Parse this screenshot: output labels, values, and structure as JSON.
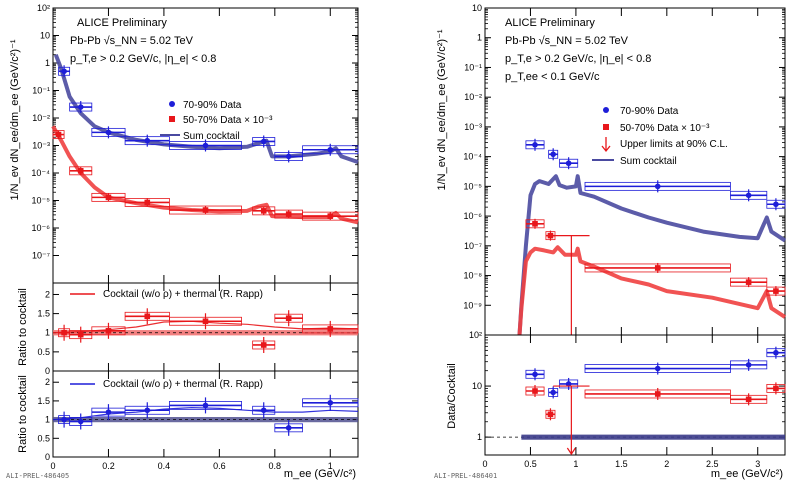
{
  "chart_data": [
    {
      "type": "scatter",
      "panel": "left-top",
      "log_y": true,
      "xlim": [
        0,
        1.1
      ],
      "ylim_exp": [
        -8,
        2
      ],
      "y_ticks": [
        "10⁻⁷",
        "10⁻⁶",
        "10⁻⁵",
        "10⁻⁴",
        "10⁻³",
        "10⁻²",
        "10⁻¹",
        "1",
        "10",
        "10²"
      ],
      "ylabel": "1/N_ev dN_ee/dm_ee (GeV/c²)⁻¹",
      "header": [
        "ALICE Preliminary",
        "Pb-Pb √s_NN = 5.02 TeV",
        "p_T,e > 0.2 GeV/c, |η_e| < 0.8"
      ],
      "legend": [
        "70-90% Data",
        "50-70% Data × 10⁻³",
        "Sum cocktail"
      ],
      "series": [
        {
          "name": "70-90% Data",
          "color": "#1e1ed8",
          "points": [
            {
              "x": 0.04,
              "xw": 0.02,
              "y": 0.5
            },
            {
              "x": 0.1,
              "xw": 0.04,
              "y": 0.025
            },
            {
              "x": 0.2,
              "xw": 0.06,
              "y": 0.003
            },
            {
              "x": 0.34,
              "xw": 0.08,
              "y": 0.0015
            },
            {
              "x": 0.55,
              "xw": 0.13,
              "y": 0.001
            },
            {
              "x": 0.76,
              "xw": 0.04,
              "y": 0.0014
            },
            {
              "x": 0.85,
              "xw": 0.05,
              "y": 0.0004
            },
            {
              "x": 1.0,
              "xw": 0.1,
              "y": 0.0007
            }
          ]
        },
        {
          "name": "50-70% Data × 10⁻³",
          "color": "#e8171b",
          "points": [
            {
              "x": 0.02,
              "xw": 0.02,
              "y": 0.0025
            },
            {
              "x": 0.1,
              "xw": 0.04,
              "y": 0.00012
            },
            {
              "x": 0.2,
              "xw": 0.06,
              "y": 1.3e-05
            },
            {
              "x": 0.34,
              "xw": 0.08,
              "y": 8.5e-06
            },
            {
              "x": 0.55,
              "xw": 0.13,
              "y": 4.5e-06
            },
            {
              "x": 0.76,
              "xw": 0.04,
              "y": 4.2e-06
            },
            {
              "x": 0.85,
              "xw": 0.05,
              "y": 3.2e-06
            },
            {
              "x": 1.0,
              "xw": 0.1,
              "y": 2.7e-06
            }
          ]
        }
      ],
      "cocktail": [
        {
          "color": "#4a4aa0",
          "band": [
            [
              0.01,
              2
            ],
            [
              0.03,
              0.6
            ],
            [
              0.06,
              0.06
            ],
            [
              0.1,
              0.015
            ],
            [
              0.15,
              0.005
            ],
            [
              0.2,
              0.003
            ],
            [
              0.3,
              0.0016
            ],
            [
              0.4,
              0.0011
            ],
            [
              0.5,
              0.0009
            ],
            [
              0.6,
              0.0008
            ],
            [
              0.7,
              0.0009
            ],
            [
              0.74,
              0.0012
            ],
            [
              0.77,
              0.0015
            ],
            [
              0.79,
              0.0004
            ],
            [
              0.85,
              0.0004
            ],
            [
              0.95,
              0.0005
            ],
            [
              1.0,
              0.0006
            ],
            [
              1.02,
              0.0008
            ],
            [
              1.04,
              0.0004
            ],
            [
              1.1,
              0.00025
            ]
          ]
        },
        {
          "color": "#f04040",
          "band": [
            [
              0.0,
              0.005
            ],
            [
              0.03,
              0.0015
            ],
            [
              0.06,
              0.0004
            ],
            [
              0.1,
              0.0001
            ],
            [
              0.15,
              3e-05
            ],
            [
              0.2,
              1.3e-05
            ],
            [
              0.3,
              8e-06
            ],
            [
              0.4,
              5.5e-06
            ],
            [
              0.5,
              4.5e-06
            ],
            [
              0.6,
              4e-06
            ],
            [
              0.7,
              4.2e-06
            ],
            [
              0.74,
              6e-06
            ],
            [
              0.77,
              7e-06
            ],
            [
              0.79,
              2.7e-06
            ],
            [
              0.9,
              2.5e-06
            ],
            [
              1.0,
              2.5e-06
            ],
            [
              1.02,
              3.5e-06
            ],
            [
              1.04,
              2.2e-06
            ],
            [
              1.1,
              1.6e-06
            ]
          ]
        }
      ]
    },
    {
      "type": "scatter",
      "panel": "left-ratio-50-70",
      "xlim": [
        0,
        1.1
      ],
      "ylim": [
        0,
        2.3
      ],
      "y_ticks": [
        "0",
        "0.5",
        "1",
        "1.5",
        "2"
      ],
      "ylabel": "Ratio to cocktail",
      "legend": [
        "Cocktail (w/o ρ) + thermal (R. Rapp)"
      ],
      "color": "#e8171b",
      "points": [
        {
          "x": 0.04,
          "xw": 0.02,
          "y": 1.0
        },
        {
          "x": 0.1,
          "xw": 0.04,
          "y": 0.95
        },
        {
          "x": 0.2,
          "xw": 0.06,
          "y": 1.05
        },
        {
          "x": 0.34,
          "xw": 0.08,
          "y": 1.43
        },
        {
          "x": 0.55,
          "xw": 0.13,
          "y": 1.3
        },
        {
          "x": 0.76,
          "xw": 0.04,
          "y": 0.68
        },
        {
          "x": 0.85,
          "xw": 0.05,
          "y": 1.38
        },
        {
          "x": 1.0,
          "xw": 0.1,
          "y": 1.1
        }
      ],
      "model": [
        [
          0,
          1.0
        ],
        [
          0.1,
          1.03
        ],
        [
          0.2,
          1.08
        ],
        [
          0.3,
          1.15
        ],
        [
          0.4,
          1.28
        ],
        [
          0.5,
          1.3
        ],
        [
          0.6,
          1.25
        ],
        [
          0.7,
          1.22
        ],
        [
          0.8,
          1.15
        ],
        [
          0.9,
          1.1
        ],
        [
          1.0,
          1.12
        ],
        [
          1.1,
          1.1
        ]
      ]
    },
    {
      "type": "scatter",
      "panel": "left-ratio-70-90",
      "xlim": [
        0,
        1.1
      ],
      "ylim": [
        0,
        2.3
      ],
      "y_ticks": [
        "0",
        "0.5",
        "1",
        "1.5",
        "2"
      ],
      "x_ticks": [
        "0",
        "0.2",
        "0.4",
        "0.6",
        "0.8",
        "1"
      ],
      "xlabel": "m_ee (GeV/c²)",
      "ylabel": "Ratio to cocktail",
      "legend": [
        "Cocktail (w/o ρ) + thermal (R. Rapp)"
      ],
      "color": "#1e1ed8",
      "points": [
        {
          "x": 0.04,
          "xw": 0.02,
          "y": 1.0
        },
        {
          "x": 0.1,
          "xw": 0.04,
          "y": 0.95
        },
        {
          "x": 0.2,
          "xw": 0.06,
          "y": 1.2
        },
        {
          "x": 0.34,
          "xw": 0.08,
          "y": 1.25
        },
        {
          "x": 0.55,
          "xw": 0.13,
          "y": 1.38
        },
        {
          "x": 0.76,
          "xw": 0.04,
          "y": 1.25
        },
        {
          "x": 0.85,
          "xw": 0.05,
          "y": 0.78
        },
        {
          "x": 1.0,
          "xw": 0.1,
          "y": 1.45
        }
      ],
      "model": [
        [
          0,
          1.0
        ],
        [
          0.1,
          1.05
        ],
        [
          0.2,
          1.15
        ],
        [
          0.3,
          1.2
        ],
        [
          0.4,
          1.28
        ],
        [
          0.5,
          1.32
        ],
        [
          0.6,
          1.3
        ],
        [
          0.7,
          1.25
        ],
        [
          0.8,
          1.2
        ],
        [
          0.9,
          1.2
        ],
        [
          1.0,
          1.25
        ],
        [
          1.1,
          1.22
        ]
      ]
    },
    {
      "type": "scatter",
      "panel": "right-top",
      "log_y": true,
      "xlim": [
        0,
        3.3
      ],
      "ylim_exp": [
        -10,
        1
      ],
      "y_ticks": [
        "10⁻⁹",
        "10⁻⁸",
        "10⁻⁷",
        "10⁻⁶",
        "10⁻⁵",
        "10⁻⁴",
        "10⁻³",
        "10⁻²",
        "10⁻¹",
        "1",
        "10"
      ],
      "ylabel": "1/N_ev dN_ee/dm_ee (GeV/c²)⁻¹",
      "header": [
        "ALICE Preliminary",
        "Pb-Pb √s_NN = 5.02 TeV",
        "p_T,e > 0.2 GeV/c, |η_e| < 0.8",
        "p_T,ee < 0.1 GeV/c"
      ],
      "legend": [
        "70-90% Data",
        "50-70% Data × 10⁻³",
        "Upper limits at 90% C.L.",
        "Sum cocktail"
      ],
      "series": [
        {
          "name": "70-90% Data",
          "color": "#1e1ed8",
          "points": [
            {
              "x": 0.55,
              "xw": 0.1,
              "y": 0.00025
            },
            {
              "x": 0.75,
              "xw": 0.05,
              "y": 0.00012
            },
            {
              "x": 0.92,
              "xw": 0.1,
              "y": 6e-05
            },
            {
              "x": 1.9,
              "xw": 0.8,
              "y": 1e-05
            },
            {
              "x": 2.9,
              "xw": 0.2,
              "y": 5e-06
            },
            {
              "x": 3.2,
              "xw": 0.1,
              "y": 2.5e-06
            }
          ]
        },
        {
          "name": "50-70% Data × 10⁻³",
          "color": "#e8171b",
          "points": [
            {
              "x": 0.55,
              "xw": 0.1,
              "y": 5.5e-07
            },
            {
              "x": 0.72,
              "xw": 0.05,
              "y": 2.2e-07
            },
            {
              "x": 1.9,
              "xw": 0.8,
              "y": 1.8e-08
            },
            {
              "x": 2.9,
              "xw": 0.2,
              "y": 6e-09
            },
            {
              "x": 3.2,
              "xw": 0.1,
              "y": 3e-09
            }
          ]
        }
      ],
      "upper_limit": {
        "x": 0.95,
        "xw": 0.2,
        "y": 2.2e-07
      },
      "cocktail": [
        {
          "color": "#4a4aa0",
          "band": [
            [
              0.38,
              1e-10
            ],
            [
              0.4,
              1e-09
            ],
            [
              0.45,
              1e-07
            ],
            [
              0.5,
              5e-06
            ],
            [
              0.55,
              1.2e-05
            ],
            [
              0.6,
              1.5e-05
            ],
            [
              0.7,
              1.2e-05
            ],
            [
              0.78,
              2.2e-05
            ],
            [
              0.82,
              1.1e-05
            ],
            [
              0.9,
              9e-06
            ],
            [
              1.0,
              1e-05
            ],
            [
              1.02,
              2.2e-05
            ],
            [
              1.05,
              6e-06
            ],
            [
              1.2,
              4.5e-06
            ],
            [
              1.5,
              1.8e-06
            ],
            [
              1.8,
              9e-07
            ],
            [
              2.0,
              6e-07
            ],
            [
              2.4,
              3e-07
            ],
            [
              2.8,
              2e-07
            ],
            [
              3.0,
              1.8e-07
            ],
            [
              3.1,
              9e-07
            ],
            [
              3.15,
              3e-07
            ],
            [
              3.3,
              1.5e-07
            ]
          ]
        },
        {
          "color": "#f04040",
          "band": [
            [
              0.38,
              1e-10
            ],
            [
              0.4,
              8e-10
            ],
            [
              0.45,
              3e-08
            ],
            [
              0.5,
              6e-08
            ],
            [
              0.55,
              8e-08
            ],
            [
              0.65,
              7e-08
            ],
            [
              0.75,
              6e-08
            ],
            [
              0.8,
              9e-08
            ],
            [
              0.88,
              5e-08
            ],
            [
              1.0,
              5e-08
            ],
            [
              1.02,
              8e-08
            ],
            [
              1.05,
              3e-08
            ],
            [
              1.2,
              2e-08
            ],
            [
              1.5,
              8e-09
            ],
            [
              1.8,
              5e-09
            ],
            [
              2.0,
              3e-09
            ],
            [
              2.5,
              1.8e-09
            ],
            [
              3.0,
              8e-10
            ],
            [
              3.1,
              3e-09
            ],
            [
              3.15,
              8e-10
            ],
            [
              3.3,
              4e-10
            ]
          ]
        }
      ]
    },
    {
      "type": "scatter",
      "panel": "right-ratio",
      "log_y": true,
      "xlim": [
        0,
        3.3
      ],
      "ylim_exp": [
        -0.35,
        2
      ],
      "y_ticks": [
        "1",
        "10",
        "10²"
      ],
      "x_ticks": [
        "0",
        "0.5",
        "1",
        "1.5",
        "2",
        "2.5",
        "3"
      ],
      "xlabel": "m_ee (GeV/c²)",
      "ylabel": "Data/Cocktail",
      "series": [
        {
          "name": "70-90%",
          "color": "#1e1ed8",
          "points": [
            {
              "x": 0.55,
              "xw": 0.1,
              "y": 17
            },
            {
              "x": 0.75,
              "xw": 0.05,
              "y": 7.5
            },
            {
              "x": 0.92,
              "xw": 0.1,
              "y": 11
            },
            {
              "x": 1.9,
              "xw": 0.8,
              "y": 22
            },
            {
              "x": 2.9,
              "xw": 0.2,
              "y": 26
            },
            {
              "x": 3.2,
              "xw": 0.1,
              "y": 45
            }
          ]
        },
        {
          "name": "50-70%",
          "color": "#e8171b",
          "points": [
            {
              "x": 0.55,
              "xw": 0.1,
              "y": 8
            },
            {
              "x": 0.72,
              "xw": 0.05,
              "y": 2.8
            },
            {
              "x": 1.9,
              "xw": 0.8,
              "y": 7
            },
            {
              "x": 2.9,
              "xw": 0.2,
              "y": 5.5
            },
            {
              "x": 3.2,
              "xw": 0.1,
              "y": 9
            }
          ]
        }
      ],
      "upper_limit": {
        "x": 0.95,
        "xw": 0.2,
        "y": 10
      }
    }
  ],
  "footer": {
    "left": "ALI-PREL-486405",
    "right": "ALI-PREL-486401"
  }
}
